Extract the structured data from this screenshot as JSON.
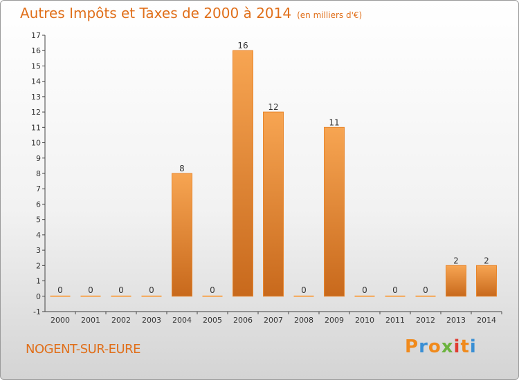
{
  "chart_data": {
    "type": "bar",
    "title": "Autres Impôts et Taxes de 2000 à 2014",
    "subtitle": "(en milliers d'€)",
    "xlabel": "",
    "ylabel": "",
    "categories": [
      "2000",
      "2001",
      "2002",
      "2003",
      "2004",
      "2005",
      "2006",
      "2007",
      "2008",
      "2009",
      "2010",
      "2011",
      "2012",
      "2013",
      "2014"
    ],
    "values": [
      0,
      0,
      0,
      0,
      8,
      0,
      16,
      12,
      0,
      11,
      0,
      0,
      0,
      2,
      2
    ],
    "ylim": [
      -1,
      17
    ],
    "yticks": [
      "-1",
      "0",
      "1",
      "2",
      "3",
      "4",
      "5",
      "6",
      "7",
      "8",
      "9",
      "10",
      "11",
      "12",
      "13",
      "14",
      "15",
      "16",
      "17"
    ],
    "grid": false,
    "legend": "none"
  },
  "footer": {
    "commune": "NOGENT-SUR-EURE",
    "logo_text": "Proxiti"
  },
  "colors": {
    "accent": "#e06f1a",
    "bar_light": "#f7a552",
    "bar_dark": "#c8691c",
    "logo": [
      "#f08a1c",
      "#3a8fd4",
      "#f08a1c",
      "#6cb33f",
      "#e03c31",
      "#f08a1c",
      "#3a8fd4"
    ]
  }
}
